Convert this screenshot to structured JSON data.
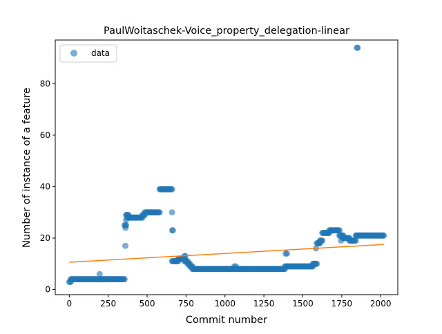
{
  "chart_data": {
    "type": "scatter",
    "title": "PaulWoitaschek-Voice_property_delegation-linear",
    "xlabel": "Commit number",
    "ylabel": "Number of instance of a feature",
    "xlim": [
      -90,
      2110
    ],
    "ylim": [
      -2,
      97
    ],
    "xticks": [
      0,
      250,
      500,
      750,
      1000,
      1250,
      1500,
      1750,
      2000
    ],
    "yticks": [
      0,
      20,
      40,
      60,
      80
    ],
    "grid": false,
    "legend": {
      "placement": "top-left",
      "entries": [
        "data"
      ]
    },
    "colors": {
      "data": "#1f77b4",
      "fit": "#ff7f0e"
    },
    "series": [
      {
        "name": "data",
        "kind": "scatter",
        "segments": [
          {
            "x0": 0,
            "x1": 10,
            "y": 3
          },
          {
            "x0": 10,
            "x1": 355,
            "y": 4
          },
          {
            "x0": 355,
            "x1": 365,
            "y": 25
          },
          {
            "x0": 365,
            "x1": 380,
            "y": 29
          },
          {
            "x0": 380,
            "x1": 470,
            "y": 28
          },
          {
            "x0": 470,
            "x1": 485,
            "y": 29
          },
          {
            "x0": 485,
            "x1": 580,
            "y": 30
          },
          {
            "x0": 580,
            "x1": 660,
            "y": 39
          },
          {
            "x0": 660,
            "x1": 700,
            "y": 11
          },
          {
            "x0": 700,
            "x1": 740,
            "y": 12
          },
          {
            "x0": 740,
            "x1": 760,
            "y": 11
          },
          {
            "x0": 760,
            "x1": 775,
            "y": 10
          },
          {
            "x0": 775,
            "x1": 790,
            "y": 9
          },
          {
            "x0": 790,
            "x1": 1385,
            "y": 8
          },
          {
            "x0": 1385,
            "x1": 1565,
            "y": 9
          },
          {
            "x0": 1565,
            "x1": 1590,
            "y": 10
          },
          {
            "x0": 1590,
            "x1": 1610,
            "y": 18
          },
          {
            "x0": 1610,
            "x1": 1625,
            "y": 19
          },
          {
            "x0": 1625,
            "x1": 1670,
            "y": 22
          },
          {
            "x0": 1670,
            "x1": 1735,
            "y": 23
          },
          {
            "x0": 1735,
            "x1": 1760,
            "y": 21
          },
          {
            "x0": 1760,
            "x1": 1800,
            "y": 20
          },
          {
            "x0": 1800,
            "x1": 1840,
            "y": 19
          },
          {
            "x0": 1840,
            "x1": 2020,
            "y": 21
          }
        ],
        "extra_points": [
          {
            "x": 195,
            "y": 6
          },
          {
            "x": 360,
            "y": 17
          },
          {
            "x": 362,
            "y": 24
          },
          {
            "x": 365,
            "y": 27
          },
          {
            "x": 370,
            "y": 28
          },
          {
            "x": 660,
            "y": 30
          },
          {
            "x": 662,
            "y": 23
          },
          {
            "x": 665,
            "y": 23
          },
          {
            "x": 740,
            "y": 13
          },
          {
            "x": 745,
            "y": 13
          },
          {
            "x": 1060,
            "y": 9
          },
          {
            "x": 1070,
            "y": 9
          },
          {
            "x": 1390,
            "y": 14
          },
          {
            "x": 1398,
            "y": 14
          },
          {
            "x": 1585,
            "y": 16
          },
          {
            "x": 1605,
            "y": 18
          },
          {
            "x": 1745,
            "y": 19
          },
          {
            "x": 1755,
            "y": 20
          },
          {
            "x": 1848,
            "y": 94
          },
          {
            "x": 1852,
            "y": 94
          }
        ]
      },
      {
        "name": "",
        "kind": "line",
        "x": [
          0,
          2020
        ],
        "y": [
          10.6,
          17.5
        ]
      }
    ]
  }
}
